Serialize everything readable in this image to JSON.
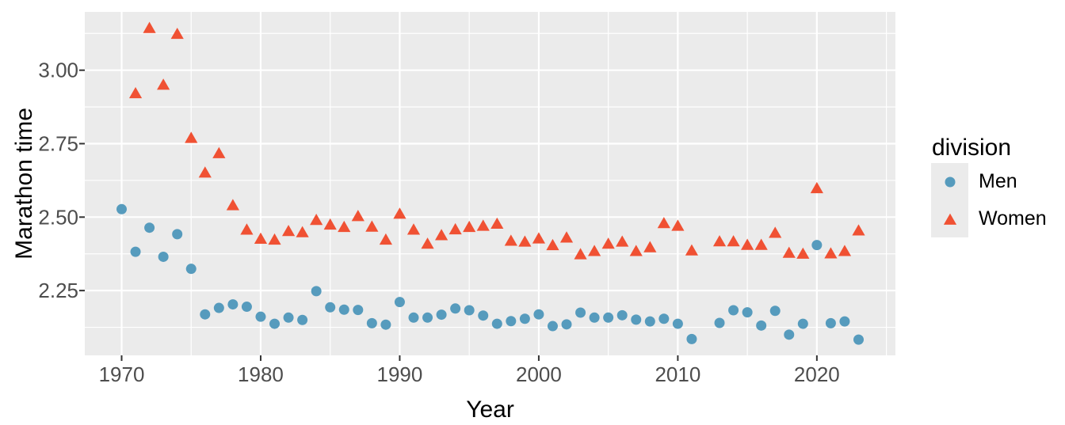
{
  "chart_data": {
    "type": "scatter",
    "title": "",
    "xlabel": "Year",
    "ylabel": "Marathon time",
    "legend_title": "division",
    "legend_position": "right",
    "grid": "on",
    "panel_background": "#EBEBEB",
    "grid_color": "#FFFFFF",
    "tick_color": "#333333",
    "tick_label_color": "#4D4D4D",
    "axis_title_color": "#000000",
    "x_range": [
      1967.35,
      2025.65
    ],
    "y_range": [
      2.0295,
      3.1985
    ],
    "x_ticks": {
      "values": [
        1970,
        1980,
        1990,
        2000,
        2010,
        2020
      ],
      "labels": [
        "1970",
        "1980",
        "1990",
        "2000",
        "2010",
        "2020"
      ],
      "minor": [
        1975,
        1985,
        1995,
        2005,
        2015,
        2025
      ]
    },
    "y_ticks": {
      "values": [
        2.25,
        2.5,
        2.75,
        3.0
      ],
      "labels": [
        "2.25",
        "2.50",
        "2.75",
        "3.00"
      ],
      "minor": [
        2.125,
        2.375,
        2.625,
        2.875,
        3.125
      ]
    },
    "series": [
      {
        "name": "Men",
        "marker": "circle",
        "color": "#569BBD",
        "points": [
          [
            1970,
            2.527
          ],
          [
            1971,
            2.382
          ],
          [
            1972,
            2.464
          ],
          [
            1973,
            2.365
          ],
          [
            1974,
            2.442
          ],
          [
            1975,
            2.324
          ],
          [
            1976,
            2.169
          ],
          [
            1977,
            2.191
          ],
          [
            1978,
            2.203
          ],
          [
            1979,
            2.195
          ],
          [
            1980,
            2.161
          ],
          [
            1981,
            2.137
          ],
          [
            1982,
            2.158
          ],
          [
            1983,
            2.15
          ],
          [
            1984,
            2.248
          ],
          [
            1985,
            2.193
          ],
          [
            1986,
            2.185
          ],
          [
            1987,
            2.184
          ],
          [
            1988,
            2.139
          ],
          [
            1989,
            2.134
          ],
          [
            1990,
            2.211
          ],
          [
            1991,
            2.158
          ],
          [
            1992,
            2.158
          ],
          [
            1993,
            2.168
          ],
          [
            1994,
            2.189
          ],
          [
            1995,
            2.183
          ],
          [
            1996,
            2.165
          ],
          [
            1997,
            2.137
          ],
          [
            1998,
            2.146
          ],
          [
            1999,
            2.154
          ],
          [
            2000,
            2.169
          ],
          [
            2001,
            2.129
          ],
          [
            2002,
            2.135
          ],
          [
            2003,
            2.175
          ],
          [
            2004,
            2.158
          ],
          [
            2005,
            2.158
          ],
          [
            2006,
            2.166
          ],
          [
            2007,
            2.151
          ],
          [
            2008,
            2.145
          ],
          [
            2009,
            2.154
          ],
          [
            2010,
            2.137
          ],
          [
            2011,
            2.085
          ],
          [
            2013,
            2.14
          ],
          [
            2014,
            2.183
          ],
          [
            2015,
            2.176
          ],
          [
            2016,
            2.131
          ],
          [
            2017,
            2.181
          ],
          [
            2018,
            2.1
          ],
          [
            2019,
            2.137
          ],
          [
            2020,
            2.405
          ],
          [
            2021,
            2.139
          ],
          [
            2022,
            2.145
          ],
          [
            2023,
            2.083
          ]
        ]
      },
      {
        "name": "Women",
        "marker": "triangle",
        "color": "#F05133",
        "points": [
          [
            1971,
            2.923
          ],
          [
            1972,
            3.145
          ],
          [
            1973,
            2.952
          ],
          [
            1974,
            3.125
          ],
          [
            1975,
            2.771
          ],
          [
            1976,
            2.653
          ],
          [
            1977,
            2.719
          ],
          [
            1978,
            2.542
          ],
          [
            1979,
            2.459
          ],
          [
            1980,
            2.428
          ],
          [
            1981,
            2.425
          ],
          [
            1982,
            2.454
          ],
          [
            1983,
            2.45
          ],
          [
            1984,
            2.492
          ],
          [
            1985,
            2.476
          ],
          [
            1986,
            2.468
          ],
          [
            1987,
            2.505
          ],
          [
            1988,
            2.469
          ],
          [
            1989,
            2.425
          ],
          [
            1990,
            2.513
          ],
          [
            1991,
            2.459
          ],
          [
            1992,
            2.411
          ],
          [
            1993,
            2.44
          ],
          [
            1994,
            2.46
          ],
          [
            1995,
            2.468
          ],
          [
            1996,
            2.472
          ],
          [
            1997,
            2.479
          ],
          [
            1998,
            2.421
          ],
          [
            1999,
            2.418
          ],
          [
            2000,
            2.429
          ],
          [
            2001,
            2.406
          ],
          [
            2002,
            2.432
          ],
          [
            2003,
            2.375
          ],
          [
            2004,
            2.386
          ],
          [
            2005,
            2.411
          ],
          [
            2006,
            2.418
          ],
          [
            2007,
            2.386
          ],
          [
            2008,
            2.399
          ],
          [
            2009,
            2.481
          ],
          [
            2010,
            2.472
          ],
          [
            2011,
            2.388
          ],
          [
            2013,
            2.419
          ],
          [
            2014,
            2.419
          ],
          [
            2015,
            2.407
          ],
          [
            2016,
            2.407
          ],
          [
            2017,
            2.448
          ],
          [
            2018,
            2.38
          ],
          [
            2019,
            2.377
          ],
          [
            2020,
            2.6
          ],
          [
            2021,
            2.378
          ],
          [
            2022,
            2.386
          ],
          [
            2023,
            2.456
          ]
        ]
      }
    ]
  }
}
